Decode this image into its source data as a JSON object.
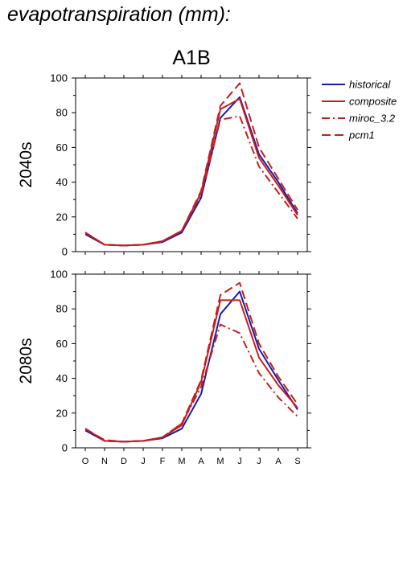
{
  "figure_title": "evapotranspiration (mm):",
  "scenario_title": "A1B",
  "legend": [
    {
      "key": "historical",
      "label": "historical",
      "color": "#1a1aaa",
      "dash": "solid"
    },
    {
      "key": "composite",
      "label": "composite",
      "color": "#c41f1f",
      "dash": "solid"
    },
    {
      "key": "miroc",
      "label": "miroc_3.2",
      "color": "#c41f1f",
      "dash": "dashdot"
    },
    {
      "key": "pcm1",
      "label": "pcm1",
      "color": "#c41f1f",
      "dash": "dash"
    }
  ],
  "chart_data": [
    {
      "type": "line",
      "title": "A1B",
      "ylabel": "2040s",
      "categories": [
        "O",
        "N",
        "D",
        "J",
        "F",
        "M",
        "A",
        "M",
        "J",
        "J",
        "A",
        "S"
      ],
      "ylim": [
        0,
        100
      ],
      "yticks": [
        0,
        20,
        40,
        60,
        80,
        100
      ],
      "series": [
        {
          "name": "historical",
          "values": [
            10,
            4,
            3.5,
            4,
            5.5,
            11,
            31,
            77,
            89,
            56,
            40,
            22
          ]
        },
        {
          "name": "composite",
          "values": [
            11,
            4,
            3.5,
            4,
            6,
            12,
            34,
            82,
            88,
            54,
            38,
            21
          ]
        },
        {
          "name": "miroc_3.2",
          "values": [
            11,
            4,
            3.5,
            4,
            6,
            12,
            33,
            76,
            78,
            49,
            34,
            19
          ]
        },
        {
          "name": "pcm1",
          "values": [
            11,
            4,
            3.5,
            4,
            6,
            12,
            35,
            84,
            97,
            60,
            42,
            24
          ]
        }
      ]
    },
    {
      "type": "line",
      "title": "",
      "ylabel": "2080s",
      "categories": [
        "O",
        "N",
        "D",
        "J",
        "F",
        "M",
        "A",
        "M",
        "J",
        "J",
        "A",
        "S"
      ],
      "ylim": [
        0,
        100
      ],
      "yticks": [
        0,
        20,
        40,
        60,
        80,
        100
      ],
      "series": [
        {
          "name": "historical",
          "values": [
            10,
            4,
            3.5,
            4,
            5.5,
            11,
            31,
            77,
            90,
            57,
            39,
            22
          ]
        },
        {
          "name": "composite",
          "values": [
            11,
            4,
            3.5,
            4,
            6,
            13,
            38,
            85,
            85,
            52,
            36,
            23
          ]
        },
        {
          "name": "miroc_3.2",
          "values": [
            11,
            4,
            3.5,
            4,
            6,
            14,
            35,
            71,
            66,
            43,
            29,
            18
          ]
        },
        {
          "name": "pcm1",
          "values": [
            11,
            4.5,
            3.5,
            4,
            6,
            14,
            39,
            88,
            95,
            60,
            41,
            25
          ]
        }
      ]
    }
  ]
}
